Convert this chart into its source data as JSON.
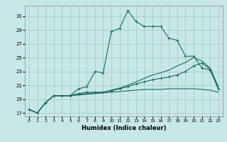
{
  "xlabel": "Humidex (Indice chaleur)",
  "ylabel": "",
  "xlim": [
    -0.5,
    23.5
  ],
  "ylim": [
    16.5,
    32.5
  ],
  "yticks": [
    17,
    19,
    21,
    23,
    25,
    27,
    29,
    31
  ],
  "xticks": [
    0,
    1,
    2,
    3,
    4,
    5,
    6,
    7,
    8,
    9,
    10,
    11,
    12,
    13,
    14,
    15,
    16,
    17,
    18,
    19,
    20,
    21,
    22,
    23
  ],
  "background_color": "#c8e8e8",
  "grid_color": "#a0c8c0",
  "line_color": "#1a6b5a",
  "lines": [
    {
      "x": [
        0,
        1,
        2,
        3,
        4,
        5,
        6,
        7,
        8,
        9,
        10,
        11,
        12,
        13,
        14,
        15,
        16,
        17,
        18,
        19,
        20,
        21,
        22,
        23
      ],
      "y": [
        17.5,
        17.0,
        18.5,
        19.5,
        19.5,
        19.5,
        20.5,
        20.8,
        23.0,
        22.8,
        28.8,
        29.2,
        31.8,
        30.2,
        29.5,
        29.5,
        29.5,
        27.8,
        27.5,
        25.2,
        25.2,
        23.5,
        23.2,
        20.5
      ],
      "marker": "+"
    },
    {
      "x": [
        0,
        1,
        2,
        3,
        4,
        5,
        6,
        7,
        8,
        9,
        10,
        11,
        12,
        13,
        14,
        15,
        16,
        17,
        18,
        19,
        20,
        21,
        22,
        23
      ],
      "y": [
        17.5,
        17.0,
        18.5,
        19.5,
        19.5,
        19.5,
        19.8,
        20.0,
        20.0,
        20.0,
        20.2,
        20.5,
        20.8,
        21.2,
        21.5,
        21.8,
        22.0,
        22.2,
        22.5,
        23.0,
        23.8,
        24.2,
        23.3,
        20.5
      ],
      "marker": "+"
    },
    {
      "x": [
        0,
        1,
        2,
        3,
        4,
        5,
        6,
        7,
        8,
        9,
        10,
        11,
        12,
        13,
        14,
        15,
        16,
        17,
        18,
        19,
        20,
        21,
        22,
        23
      ],
      "y": [
        17.5,
        17.0,
        18.5,
        19.5,
        19.5,
        19.5,
        19.6,
        19.7,
        19.8,
        19.9,
        20.0,
        20.1,
        20.2,
        20.3,
        20.4,
        20.4,
        20.4,
        20.5,
        20.5,
        20.5,
        20.5,
        20.4,
        20.3,
        20.0
      ],
      "marker": null
    },
    {
      "x": [
        0,
        1,
        2,
        3,
        4,
        5,
        6,
        7,
        8,
        9,
        10,
        11,
        12,
        13,
        14,
        15,
        16,
        17,
        18,
        19,
        20,
        21,
        22,
        23
      ],
      "y": [
        17.5,
        17.0,
        18.5,
        19.5,
        19.5,
        19.5,
        19.7,
        19.8,
        19.9,
        20.0,
        20.3,
        20.6,
        21.0,
        21.5,
        22.0,
        22.5,
        22.8,
        23.2,
        23.8,
        24.3,
        25.0,
        24.5,
        23.5,
        20.8
      ],
      "marker": null
    }
  ]
}
